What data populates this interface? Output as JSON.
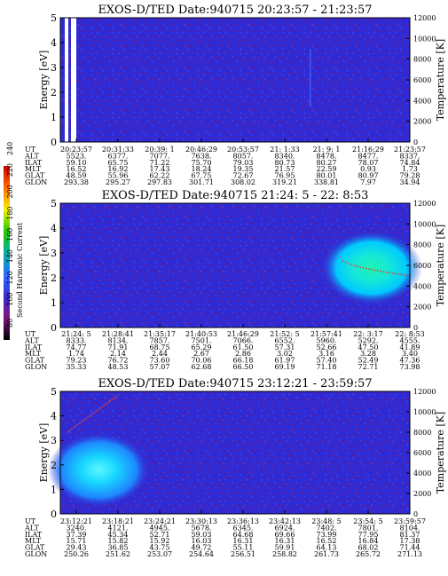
{
  "colors": {
    "background": "#2e2bd6",
    "speckle": "#7a1678",
    "speckle_blue": "#4a55f0",
    "stripe": "#3a62ff",
    "white": "#ffffff"
  },
  "colorbar": {
    "label": "Second Harmonic Current",
    "ticks": [
      "240",
      "220",
      "200",
      "180",
      "160",
      "140",
      "120",
      "100",
      "80"
    ],
    "stops": [
      "#cc0000",
      "#ff6a00",
      "#f7f000",
      "#28c800",
      "#00b4a0",
      "#2f6dff",
      "#3a2bd0",
      "#7a1678",
      "#000000"
    ]
  },
  "chart_data": [
    {
      "type": "heatmap",
      "title": "EXOS-D/TED   Date:940715  20:23:57 - 21:23:57",
      "ylabel": "Energy [eV]",
      "ylabel_right": "Temperature [K]",
      "ylim": [
        0,
        5
      ],
      "yticks": [
        "0",
        "1",
        "2",
        "3",
        "4",
        "5"
      ],
      "y2lim": [
        0,
        12000
      ],
      "y2ticks": [
        "0",
        "2000",
        "4000",
        "6000",
        "8000",
        "10000",
        "12000"
      ],
      "row_labels": [
        "UT",
        "ALT",
        "ILAT",
        "MLT",
        "GLAT",
        "GLON"
      ],
      "columns": [
        [
          "20:23:57",
          "5523.",
          "59.10",
          "16.52",
          "48.59",
          "293.38"
        ],
        [
          "20:31:33",
          "6377.",
          "65.75",
          "16.92",
          "55.96",
          "295.27"
        ],
        [
          "20:39: 1",
          "7077.",
          "71.22",
          "17.43",
          "62.22",
          "297.83"
        ],
        [
          "20:46:29",
          "7638.",
          "75.70",
          "18.24",
          "67.75",
          "301.71"
        ],
        [
          "20:53:57",
          "8057.",
          "79.03",
          "19.35",
          "72.67",
          "308.02"
        ],
        [
          "21: 1:33",
          "8340.",
          "80.73",
          "21.57",
          "76.95",
          "319.21"
        ],
        [
          "21: 9: 1",
          "8478.",
          "80.27",
          "22.59",
          "80.01",
          "338.81"
        ],
        [
          "21:16:29",
          "8477.",
          "78.07",
          "0.93",
          "80.97",
          "7.97"
        ],
        [
          "21:23:57",
          "8337.",
          "74.84",
          "1.73",
          "79.28",
          "34.94"
        ]
      ],
      "features": [
        {
          "kind": "vertical-stripe",
          "x_fraction": 0.715,
          "note": "thin bright line"
        }
      ]
    },
    {
      "type": "heatmap",
      "title": "EXOS-D/TED   Date:940715  21:24: 5 - 22: 8:53",
      "ylabel": "Energy [eV]",
      "ylabel_right": "Temperature [K]",
      "ylim": [
        0,
        5
      ],
      "yticks": [
        "0",
        "1",
        "2",
        "3",
        "4",
        "5"
      ],
      "y2lim": [
        0,
        12000
      ],
      "y2ticks": [
        "0",
        "2000",
        "4000",
        "6000",
        "8000",
        "10000",
        "12000"
      ],
      "row_labels": [
        "UT",
        "ALT",
        "ILAT",
        "MLT",
        "GLAT",
        "GLON"
      ],
      "columns": [
        [
          "21:24: 5",
          "8333.",
          "74.77",
          "1.74",
          "79.23",
          "35.33"
        ],
        [
          "21:28:41",
          "8134.",
          "71.91",
          "2.14",
          "76.72",
          "48.53"
        ],
        [
          "21:35:17",
          "7857.",
          "68.75",
          "2.44",
          "73.60",
          "57.07"
        ],
        [
          "21:40:53",
          "7501.",
          "65.29",
          "2.67",
          "70.06",
          "62.68"
        ],
        [
          "21:46:29",
          "7066.",
          "61.50",
          "2.86",
          "66.18",
          "66.50"
        ],
        [
          "21:52: 5",
          "6552.",
          "57.31",
          "3.02",
          "61.97",
          "69.19"
        ],
        [
          "21:57:41",
          "5960.",
          "52.66",
          "3.16",
          "57.40",
          "71.18"
        ],
        [
          "22: 3:17",
          "5292.",
          "47.50",
          "3.28",
          "52.49",
          "72.71"
        ],
        [
          "22: 8:53",
          "4555.",
          "41.89",
          "3.40",
          "47.36",
          "73.98"
        ]
      ],
      "features": [
        {
          "kind": "blob",
          "energy_center_eV": 2.4,
          "x_range_fraction": [
            0.78,
            1.0
          ]
        },
        {
          "kind": "temperature-trace",
          "from_K": 6800,
          "to_K": 5000
        }
      ]
    },
    {
      "type": "heatmap",
      "title": "EXOS-D/TED   Date:940715  23:12:21 - 23:59:57",
      "ylabel": "Energy [eV]",
      "ylabel_right": "Temperature [K]",
      "ylim": [
        0,
        5
      ],
      "yticks": [
        "0",
        "1",
        "2",
        "3",
        "4",
        "5"
      ],
      "y2lim": [
        0,
        12000
      ],
      "y2ticks": [
        "0",
        "2000",
        "4000",
        "6000",
        "8000",
        "10000",
        "12000"
      ],
      "row_labels": [
        "UT",
        "ALT",
        "ILAT",
        "MLT",
        "GLAT",
        "GLON"
      ],
      "columns": [
        [
          "23:12:21",
          "3240.",
          "37.39",
          "15.71",
          "29.43",
          "250.26"
        ],
        [
          "23:18:21",
          "4121.",
          "45.34",
          "15.82",
          "36.85",
          "251.62"
        ],
        [
          "23:24:21",
          "4945.",
          "52.71",
          "15.92",
          "43.75",
          "253.07"
        ],
        [
          "23:30:13",
          "5678.",
          "59.03",
          "16.03",
          "49.72",
          "254.64"
        ],
        [
          "23:36:13",
          "6345.",
          "64.68",
          "16.31",
          "55.11",
          "256.51"
        ],
        [
          "23:42:13",
          "6924.",
          "69.66",
          "16.31",
          "59.91",
          "258.82"
        ],
        [
          "23:48: 5",
          "7402.",
          "73.99",
          "16.52",
          "64.13",
          "261.73"
        ],
        [
          "23:54: 5",
          "7801.",
          "77.95",
          "16.84",
          "68.02",
          "265.72"
        ],
        [
          "23:59:57",
          "8104.",
          "81.37",
          "17.38",
          "71.44",
          "271.13"
        ]
      ],
      "features": [
        {
          "kind": "blob",
          "energy_center_eV": 1.8,
          "x_range_fraction": [
            0.0,
            0.22
          ]
        },
        {
          "kind": "temperature-trace",
          "from_K": 8000,
          "to_K": 11500
        }
      ]
    }
  ]
}
